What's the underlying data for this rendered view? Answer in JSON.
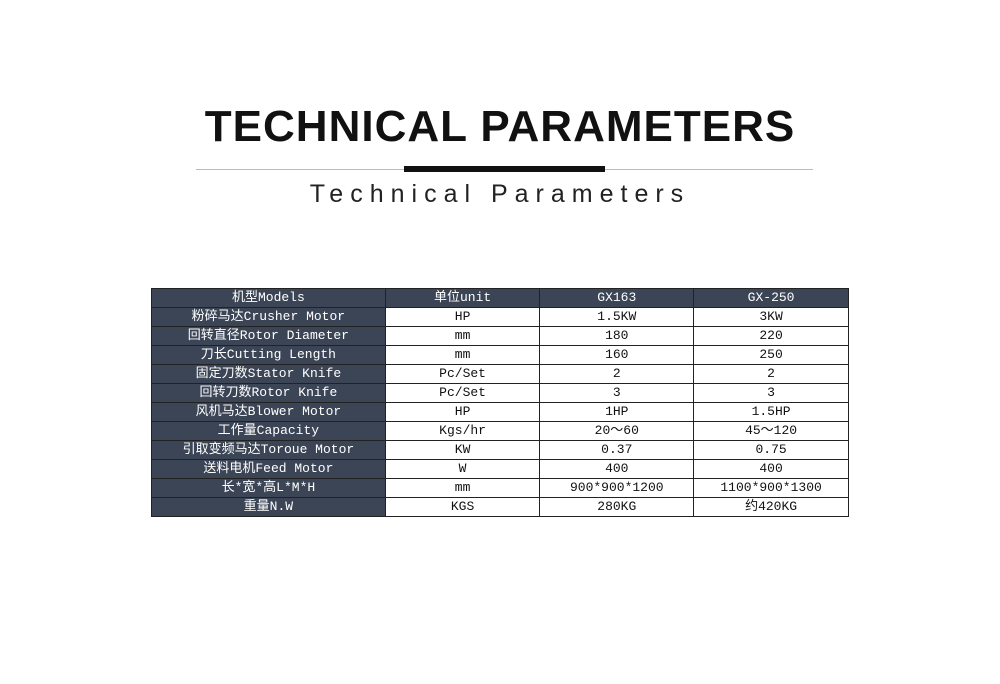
{
  "title": "TECHNICAL PARAMETERS",
  "subtitle": "Technical Parameters",
  "table": {
    "header": [
      "机型Models",
      "单位unit",
      "GX163",
      "GX-250"
    ],
    "rows": [
      [
        "粉碎马达Crusher Motor",
        "HP",
        "1.5KW",
        "3KW"
      ],
      [
        "回转直径Rotor Diameter",
        "mm",
        "180",
        "220"
      ],
      [
        "刀长Cutting Length",
        "mm",
        "160",
        "250"
      ],
      [
        "固定刀数Stator Knife",
        "Pc/Set",
        "2",
        "2"
      ],
      [
        "回转刀数Rotor Knife",
        "Pc/Set",
        "3",
        "3"
      ],
      [
        "风机马达Blower Motor",
        "HP",
        "1HP",
        "1.5HP"
      ],
      [
        "工作量Capacity",
        "Kgs/hr",
        "20～60",
        "45～120"
      ],
      [
        "引取变频马达Toroue Motor",
        "KW",
        "0.37",
        "0.75"
      ],
      [
        "送料电机Feed Motor",
        "W",
        "400",
        "400"
      ],
      [
        "长*宽*高L*M*H",
        "mm",
        "900*900*1200",
        "1100*900*1300"
      ],
      [
        "重量N.W",
        "KGS",
        "280KG",
        "约420KG"
      ]
    ]
  },
  "colors": {
    "header_bg": "#3b4556"
  }
}
